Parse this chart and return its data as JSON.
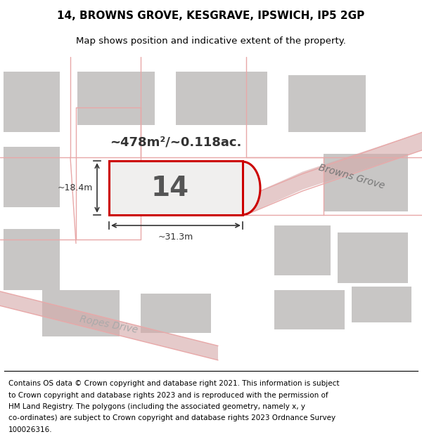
{
  "title_line1": "14, BROWNS GROVE, KESGRAVE, IPSWICH, IP5 2GP",
  "title_line2": "Map shows position and indicative extent of the property.",
  "footer_lines": [
    "Contains OS data © Crown copyright and database right 2021. This information is subject",
    "to Crown copyright and database rights 2023 and is reproduced with the permission of",
    "HM Land Registry. The polygons (including the associated geometry, namely x, y",
    "co-ordinates) are subject to Crown copyright and database rights 2023 Ordnance Survey",
    "100026316."
  ],
  "area_text": "~478m²/~0.118ac.",
  "label_number": "14",
  "dim_width": "~31.3m",
  "dim_height": "~18.4m",
  "street_name_1": "Browns Grove",
  "street_name_2": "Ropes Drive",
  "map_bg": "#dedcdb",
  "plot_fill": "#f0efee",
  "plot_edge": "#cc0000",
  "road_color": "#e8a8a8",
  "block_color": "#c8c6c5",
  "title_fontsize": 11,
  "subtitle_fontsize": 9.5,
  "footer_fontsize": 7.5
}
